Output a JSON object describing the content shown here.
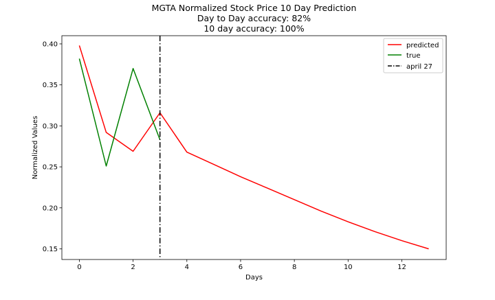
{
  "chart_data": {
    "type": "line",
    "title_lines": [
      "MGTA Normalized Stock Price 10 Day Prediction",
      "Day to Day accuracy: 82%",
      "10 day accuracy: 100%"
    ],
    "xlabel": "Days",
    "ylabel": "Normalized Values",
    "xlim": [
      -0.65,
      13.65
    ],
    "ylim": [
      0.137,
      0.41
    ],
    "xticks": [
      0,
      2,
      4,
      6,
      8,
      10,
      12
    ],
    "yticks": [
      0.15,
      0.2,
      0.25,
      0.3,
      0.35,
      0.4
    ],
    "ytick_labels": [
      "0.15",
      "0.20",
      "0.25",
      "0.30",
      "0.35",
      "0.40"
    ],
    "series": [
      {
        "name": "predicted",
        "color": "#ff0000",
        "x": [
          0,
          1,
          2,
          3,
          4,
          5,
          6,
          7,
          8,
          9,
          10,
          11,
          12,
          13
        ],
        "y": [
          0.398,
          0.292,
          0.269,
          0.316,
          0.268,
          0.253,
          0.238,
          0.224,
          0.21,
          0.196,
          0.183,
          0.171,
          0.16,
          0.15
        ]
      },
      {
        "name": "true",
        "color": "#008000",
        "x": [
          0,
          1,
          2,
          3
        ],
        "y": [
          0.382,
          0.251,
          0.37,
          0.283
        ]
      }
    ],
    "vline": {
      "name": "april 27",
      "x": 3,
      "color": "#000000",
      "style": "dashdot"
    },
    "legend": {
      "placement": "top-right"
    },
    "grid": false
  }
}
